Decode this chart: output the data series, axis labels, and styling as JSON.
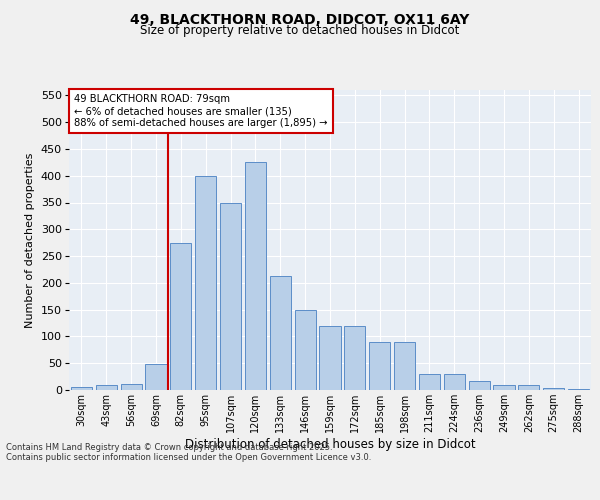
{
  "title1": "49, BLACKTHORN ROAD, DIDCOT, OX11 6AY",
  "title2": "Size of property relative to detached houses in Didcot",
  "xlabel": "Distribution of detached houses by size in Didcot",
  "ylabel": "Number of detached properties",
  "bins": [
    "30sqm",
    "43sqm",
    "56sqm",
    "69sqm",
    "82sqm",
    "95sqm",
    "107sqm",
    "120sqm",
    "133sqm",
    "146sqm",
    "159sqm",
    "172sqm",
    "185sqm",
    "198sqm",
    "211sqm",
    "224sqm",
    "236sqm",
    "249sqm",
    "262sqm",
    "275sqm",
    "288sqm"
  ],
  "values": [
    5,
    10,
    12,
    48,
    275,
    400,
    350,
    425,
    213,
    150,
    120,
    120,
    90,
    90,
    30,
    30,
    17,
    10,
    10,
    4,
    1
  ],
  "bar_color": "#b8cfe8",
  "bar_edge_color": "#5b8dc8",
  "vline_x_index": 4,
  "vline_color": "#cc0000",
  "annotation_text": "49 BLACKTHORN ROAD: 79sqm\n← 6% of detached houses are smaller (135)\n88% of semi-detached houses are larger (1,895) →",
  "annotation_box_color": "#ffffff",
  "annotation_box_edge": "#cc0000",
  "ylim": [
    0,
    560
  ],
  "yticks": [
    0,
    50,
    100,
    150,
    200,
    250,
    300,
    350,
    400,
    450,
    500,
    550
  ],
  "bg_color": "#e8eef5",
  "fig_bg_color": "#f0f0f0",
  "footer1": "Contains HM Land Registry data © Crown copyright and database right 2025.",
  "footer2": "Contains public sector information licensed under the Open Government Licence v3.0."
}
